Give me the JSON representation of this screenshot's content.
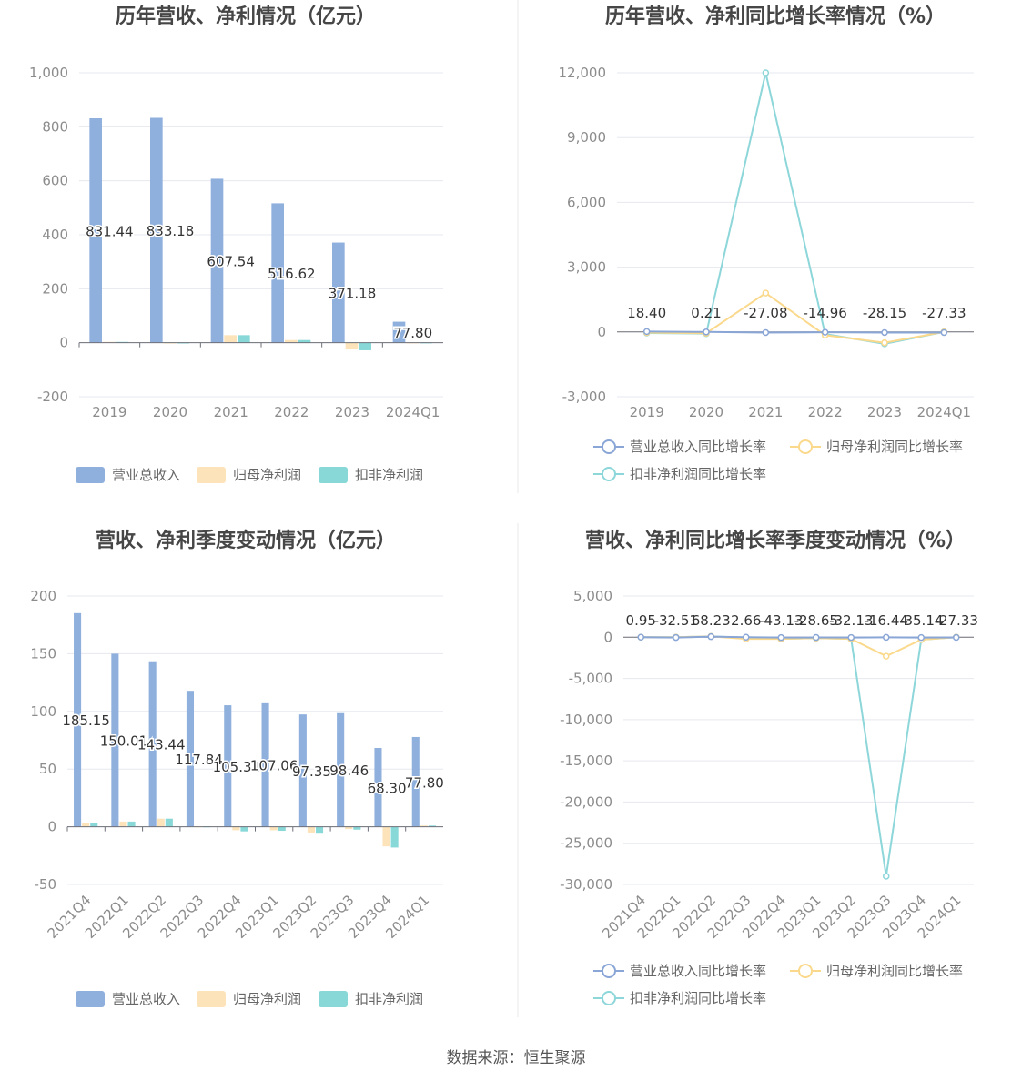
{
  "footer": "数据来源：恒生聚源",
  "colors": {
    "revenue": "#8fb0dd",
    "net_profit": "#fde3b9",
    "deducted_profit": "#88d8d8",
    "revenue_line": "#8aa6d6",
    "net_line": "#fbd98c",
    "deducted_line": "#8dd6d9"
  },
  "legend_bar": [
    "营业总收入",
    "归母净利润",
    "扣非净利润"
  ],
  "legend_line": [
    "营业总收入同比增长率",
    "归母净利润同比增长率",
    "扣非净利润同比增长率"
  ],
  "chart_data": [
    {
      "type": "bar",
      "title": "历年营收、净利情况（亿元）",
      "categories": [
        "2019",
        "2020",
        "2021",
        "2022",
        "2023",
        "2024Q1"
      ],
      "ylim": [
        -200,
        1000
      ],
      "yticks": [
        "1,000",
        "800",
        "600",
        "400",
        "200",
        "0",
        "-200"
      ],
      "series": [
        {
          "name": "营业总收入",
          "values": [
            831.44,
            833.18,
            607.54,
            516.62,
            371.18,
            77.8
          ]
        },
        {
          "name": "归母净利润",
          "values": [
            3,
            0.5,
            28,
            10,
            -25,
            1
          ]
        },
        {
          "name": "扣非净利润",
          "values": [
            3,
            0.5,
            28,
            10,
            -28,
            1
          ]
        }
      ],
      "data_labels": [
        "831.44",
        "833.18",
        "607.54",
        "516.62",
        "371.18",
        "77.80"
      ],
      "legend_position": "bottom",
      "grid": true
    },
    {
      "type": "line",
      "title": "历年营收、净利同比增长率情况（%）",
      "categories": [
        "2019",
        "2020",
        "2021",
        "2022",
        "2023",
        "2024Q1"
      ],
      "ylim": [
        -3000,
        12000
      ],
      "yticks": [
        "12,000",
        "9,000",
        "6,000",
        "3,000",
        "0",
        "-3,000"
      ],
      "series": [
        {
          "name": "营业总收入同比增长率",
          "values": [
            18.4,
            0.21,
            -27.08,
            -14.96,
            -28.15,
            -27.33
          ]
        },
        {
          "name": "归母净利润同比增长率",
          "values": [
            -30,
            -60,
            1800,
            -150,
            -500,
            0
          ]
        },
        {
          "name": "扣非净利润同比增长率",
          "values": [
            -50,
            -80,
            12000,
            -100,
            -550,
            0
          ]
        }
      ],
      "data_labels": [
        "18.40",
        "0.21",
        "-27.08",
        "-14.96",
        "-28.15",
        "-27.33"
      ],
      "legend_position": "bottom",
      "grid": true
    },
    {
      "type": "bar",
      "title": "营收、净利季度变动情况（亿元）",
      "categories": [
        "2021Q4",
        "2022Q1",
        "2022Q2",
        "2022Q3",
        "2022Q4",
        "2023Q1",
        "2023Q2",
        "2023Q3",
        "2023Q4",
        "2024Q1"
      ],
      "ylim": [
        -50,
        200
      ],
      "yticks": [
        "200",
        "150",
        "100",
        "50",
        "0",
        "-50"
      ],
      "series": [
        {
          "name": "营业总收入",
          "values": [
            185.15,
            150.01,
            143.44,
            117.84,
            105.31,
            107.06,
            97.35,
            98.46,
            68.3,
            77.8
          ]
        },
        {
          "name": "归母净利润",
          "values": [
            3,
            4.5,
            7,
            0.3,
            -3,
            -3,
            -5,
            -2,
            -17,
            1
          ]
        },
        {
          "name": "扣非净利润",
          "values": [
            3,
            4.5,
            7,
            0.3,
            -4,
            -3.5,
            -6,
            -2.5,
            -18,
            1
          ]
        }
      ],
      "data_labels": [
        "185.15",
        "150.01",
        "143.44",
        "117.84",
        "105.31",
        "107.06",
        "97.35",
        "98.46",
        "68.30",
        "77.80"
      ],
      "legend_position": "bottom",
      "grid": true
    },
    {
      "type": "line",
      "title": "营收、净利同比增长率季度变动情况（%）",
      "categories": [
        "2021Q4",
        "2022Q1",
        "2022Q2",
        "2022Q3",
        "2022Q4",
        "2023Q1",
        "2023Q2",
        "2023Q3",
        "2023Q4",
        "2024Q1"
      ],
      "ylim": [
        -30000,
        5000
      ],
      "yticks": [
        "5,000",
        "0",
        "-5,000",
        "-10,000",
        "-15,000",
        "-20,000",
        "-25,000",
        "-30,000"
      ],
      "series": [
        {
          "name": "营业总收入同比增长率",
          "values": [
            0.95,
            -32.51,
            68.23,
            2.66,
            -43.13,
            -28.65,
            -32.13,
            -16.44,
            -35.14,
            -27.33
          ]
        },
        {
          "name": "归母净利润同比增长率",
          "values": [
            0,
            0,
            100,
            -200,
            -200,
            -100,
            -200,
            -2300,
            -300,
            0
          ]
        },
        {
          "name": "扣非净利润同比增长率",
          "values": [
            0,
            0,
            100,
            -50,
            -200,
            -100,
            -200,
            -29000,
            -300,
            0
          ]
        }
      ],
      "data_labels": [
        "0.95",
        "-32.51",
        "68.23",
        "2.66",
        "-43.13",
        "-28.65",
        "-32.13",
        "-16.44",
        "-35.14",
        "-27.33"
      ],
      "legend_position": "bottom",
      "grid": true
    }
  ]
}
